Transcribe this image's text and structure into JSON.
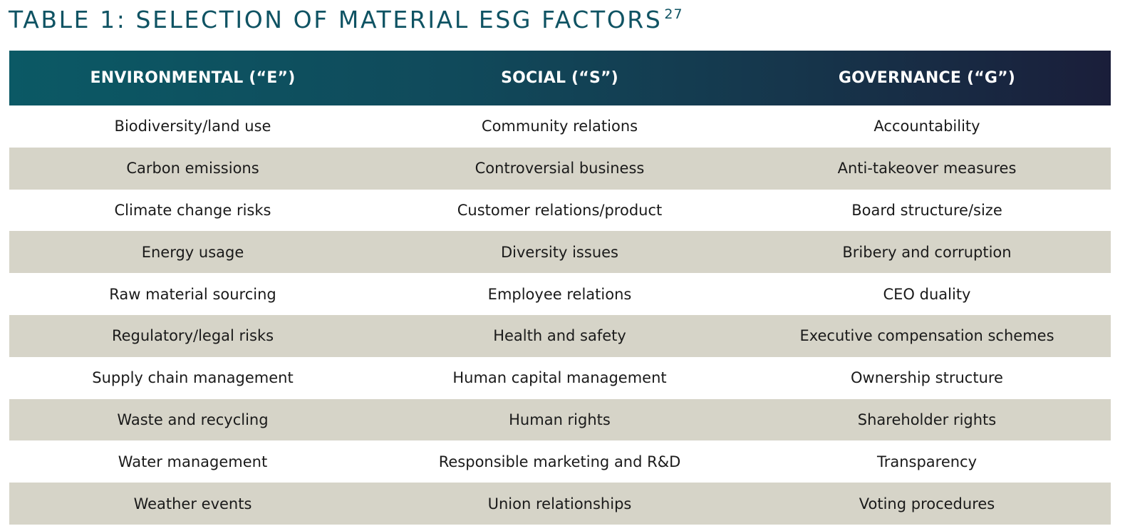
{
  "title": {
    "text": "TABLE 1: SELECTION OF MATERIAL ESG FACTORS",
    "footnote": "27"
  },
  "colors": {
    "title": "#0f5363",
    "header_start": "#0b5965",
    "header_end": "#1a1e3a",
    "stripe": "#d6d4c8",
    "header_text": "#ffffff",
    "cell_text": "#1a1a1a"
  },
  "table": {
    "headers": [
      "ENVIRONMENTAL (“E”)",
      "SOCIAL (“S”)",
      "GOVERNANCE (“G”)"
    ],
    "rows": [
      [
        "Biodiversity/land use",
        "Community relations",
        "Accountability"
      ],
      [
        "Carbon emissions",
        "Controversial business",
        "Anti-takeover measures"
      ],
      [
        "Climate change risks",
        "Customer relations/product",
        "Board structure/size"
      ],
      [
        "Energy usage",
        "Diversity issues",
        "Bribery and corruption"
      ],
      [
        "Raw material sourcing",
        "Employee relations",
        "CEO duality"
      ],
      [
        "Regulatory/legal risks",
        "Health and safety",
        "Executive compensation schemes"
      ],
      [
        "Supply chain management",
        "Human capital management",
        "Ownership structure"
      ],
      [
        "Waste and recycling",
        "Human rights",
        "Shareholder rights"
      ],
      [
        "Water management",
        "Responsible marketing and R&D",
        "Transparency"
      ],
      [
        "Weather events",
        "Union relationships",
        "Voting procedures"
      ]
    ]
  }
}
